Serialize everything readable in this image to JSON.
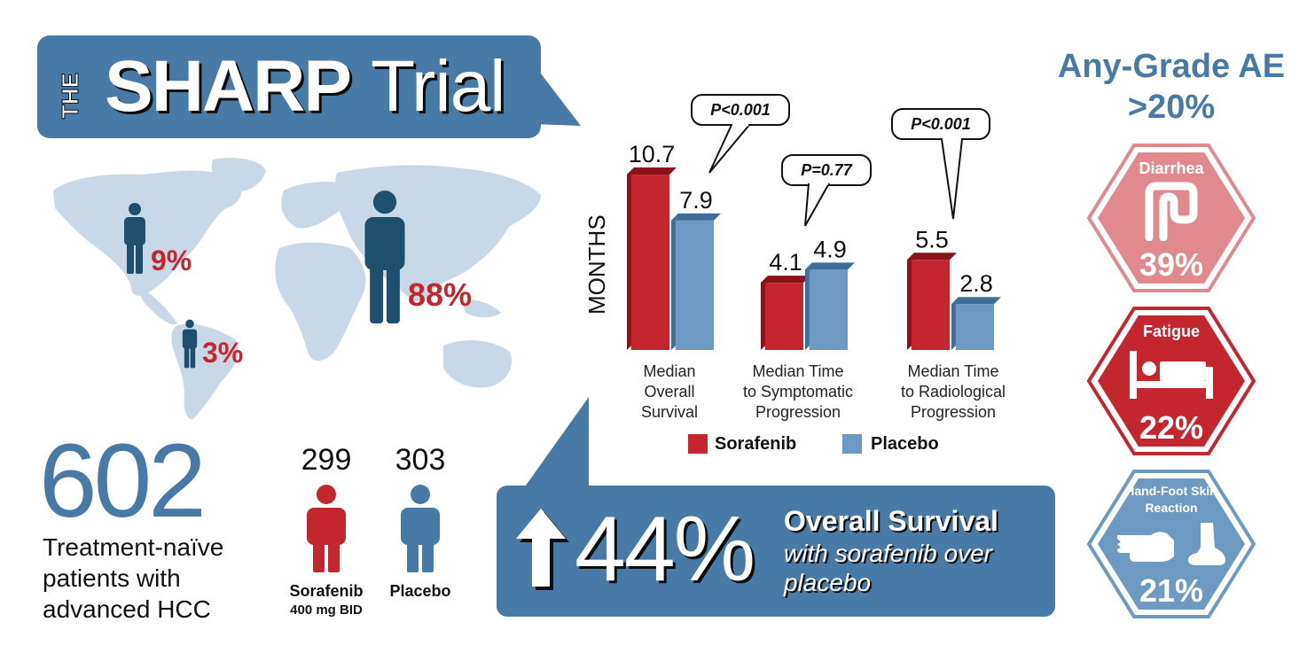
{
  "title": {
    "the": "THE",
    "name": "SHARP",
    "word": "Trial"
  },
  "regions": [
    {
      "id": "north-america",
      "pct": "9%"
    },
    {
      "id": "south-america",
      "pct": "3%"
    },
    {
      "id": "asia",
      "pct": "88%"
    }
  ],
  "enrollment": {
    "total": "602",
    "description": "Treatment-naïve patients with advanced HCC",
    "sorafenib": {
      "count": "299",
      "label": "Sorafenib",
      "dose": "400 mg BID"
    },
    "placebo": {
      "count": "303",
      "label": "Placebo"
    }
  },
  "chart_data": {
    "type": "bar",
    "ylabel": "MONTHS",
    "categories": [
      "Median Overall Survival",
      "Median Time to Symptomatic Progression",
      "Median Time to Radiological Progression"
    ],
    "category_lines": [
      [
        "Median",
        "Overall",
        "Survival"
      ],
      [
        "Median Time",
        "to Symptomatic",
        "Progression"
      ],
      [
        "Median Time",
        "to Radiological",
        "Progression"
      ]
    ],
    "series": [
      {
        "name": "Sorafenib",
        "values": [
          10.7,
          4.1,
          5.5
        ],
        "labels": [
          "10.7",
          "4.1",
          "5.5"
        ],
        "color": "#c4262e"
      },
      {
        "name": "Placebo",
        "values": [
          7.9,
          4.9,
          2.8
        ],
        "labels": [
          "7.9",
          "4.9",
          "2.8"
        ],
        "color": "#6d9ac3"
      }
    ],
    "annotations": [
      "P<0.001",
      "P=0.77",
      "P<0.001"
    ]
  },
  "survival": {
    "pct": "44%",
    "title": "Overall Survival",
    "subtitle": "with sorafenib over placebo"
  },
  "adverse_events": {
    "title": "Any-Grade AE >20%",
    "items": [
      {
        "name": "Diarrhea",
        "pct": "39%",
        "icon": "intestine-icon"
      },
      {
        "name": "Fatigue",
        "pct": "22%",
        "icon": "bed-icon"
      },
      {
        "name": "Hand-Foot Skin Reaction",
        "pct": "21%",
        "icon": "hand-foot-icon"
      }
    ]
  },
  "colors": {
    "brand_blue": "#477aa6",
    "red": "#c4262e",
    "dark_navy": "#1f4f6e",
    "map_blue": "#c9d8e6",
    "ae_diarrhea": "#e08a90",
    "ae_fatigue": "#c4262e",
    "ae_hfsr": "#6d9ac3"
  }
}
